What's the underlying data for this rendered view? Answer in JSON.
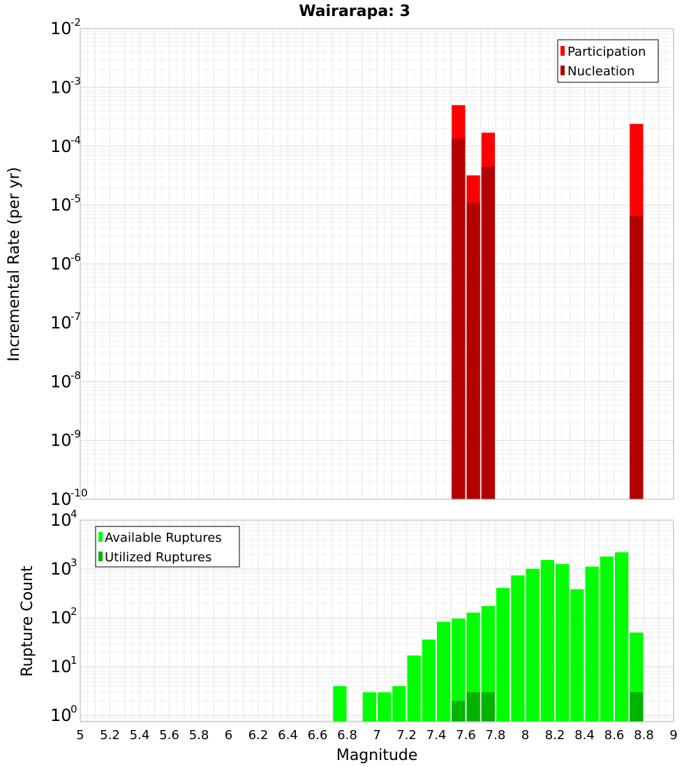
{
  "chart_data": [
    {
      "type": "bar",
      "title": "Wairarapa: 3",
      "xlabel": "",
      "ylabel": "Incremental Rate (per yr)",
      "y_scale": "log",
      "xlim": [
        5,
        9
      ],
      "ylim": [
        1e-10,
        0.01
      ],
      "grid": true,
      "legend_position": "top-right",
      "bar_width": 0.1,
      "x": [
        7.55,
        7.65,
        7.75,
        8.75
      ],
      "series": [
        {
          "name": "Participation",
          "color": "#ff0000",
          "values": [
            0.0005,
            3.2e-05,
            0.00017,
            0.00024
          ]
        },
        {
          "name": "Nucleation",
          "color": "#b30000",
          "values": [
            0.000135,
            1.1e-05,
            4.5e-05,
            6.5e-06
          ]
        }
      ]
    },
    {
      "type": "bar",
      "xlabel": "Magnitude",
      "ylabel": "Rupture Count",
      "y_scale": "log",
      "xlim": [
        5,
        9
      ],
      "ylim": [
        0.75,
        10000
      ],
      "grid": true,
      "legend_position": "top-left",
      "bar_width": 0.1,
      "x": [
        6.75,
        6.95,
        7.05,
        7.15,
        7.25,
        7.35,
        7.45,
        7.55,
        7.65,
        7.75,
        7.85,
        7.95,
        8.05,
        8.15,
        8.25,
        8.35,
        8.45,
        8.55,
        8.65,
        8.75
      ],
      "series": [
        {
          "name": "Available Ruptures",
          "color": "#00ff00",
          "values": [
            4,
            3,
            3,
            4,
            17,
            36,
            83,
            97,
            128,
            175,
            410,
            740,
            1010,
            1530,
            1260,
            385,
            1120,
            1800,
            2200,
            50
          ]
        },
        {
          "name": "Utilized Ruptures",
          "color": "#00b300",
          "values": [
            0,
            0,
            0,
            0,
            0,
            0,
            0,
            2,
            3,
            3,
            0,
            0,
            0,
            0,
            0,
            0,
            0,
            0,
            0,
            3
          ]
        }
      ]
    }
  ],
  "x_ticks": [
    "5",
    "5.2",
    "5.4",
    "5.6",
    "5.8",
    "6",
    "6.2",
    "6.4",
    "6.6",
    "6.8",
    "7",
    "7.2",
    "7.4",
    "7.6",
    "7.8",
    "8",
    "8.2",
    "8.4",
    "8.6",
    "8.8",
    "9"
  ],
  "top_y_ticks": [
    {
      "base": "10",
      "exp": "-2"
    },
    {
      "base": "10",
      "exp": "-3"
    },
    {
      "base": "10",
      "exp": "-4"
    },
    {
      "base": "10",
      "exp": "-5"
    },
    {
      "base": "10",
      "exp": "-6"
    },
    {
      "base": "10",
      "exp": "-7"
    },
    {
      "base": "10",
      "exp": "-8"
    },
    {
      "base": "10",
      "exp": "-9"
    },
    {
      "base": "10",
      "exp": "-10"
    }
  ],
  "bottom_y_ticks": [
    {
      "base": "10",
      "exp": "4"
    },
    {
      "base": "10",
      "exp": "3"
    },
    {
      "base": "10",
      "exp": "2"
    },
    {
      "base": "10",
      "exp": "1"
    },
    {
      "base": "10",
      "exp": "0"
    }
  ]
}
